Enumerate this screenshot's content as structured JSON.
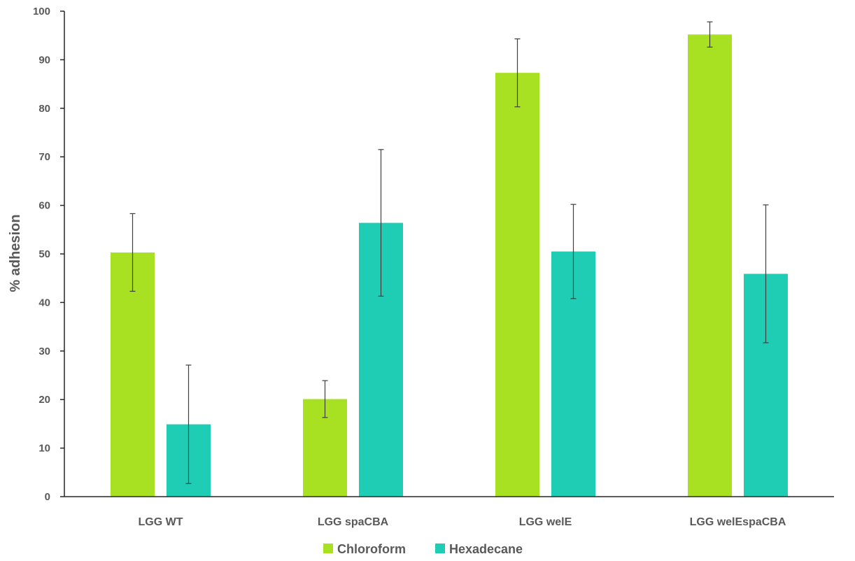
{
  "chart_data": {
    "type": "bar",
    "title": "",
    "xlabel": "",
    "ylabel": "% adhesion",
    "ylim": [
      0,
      100
    ],
    "yticks": [
      0,
      10,
      20,
      30,
      40,
      50,
      60,
      70,
      80,
      90,
      100
    ],
    "categories": [
      "LGG WT",
      "LGG spaCBA",
      "LGG welE",
      "LGG welEspaCBA"
    ],
    "series": [
      {
        "name": "Chloroform",
        "color": "#a8e022",
        "values": [
          50.3,
          20.1,
          87.3,
          95.2
        ],
        "error": [
          8.0,
          3.8,
          7.0,
          2.6
        ]
      },
      {
        "name": "Hexadecane",
        "color": "#1fcdb5",
        "values": [
          14.9,
          56.4,
          50.5,
          45.9
        ],
        "error": [
          12.2,
          15.1,
          9.7,
          14.2
        ]
      }
    ],
    "grid": false,
    "legend_position": "bottom-center"
  }
}
